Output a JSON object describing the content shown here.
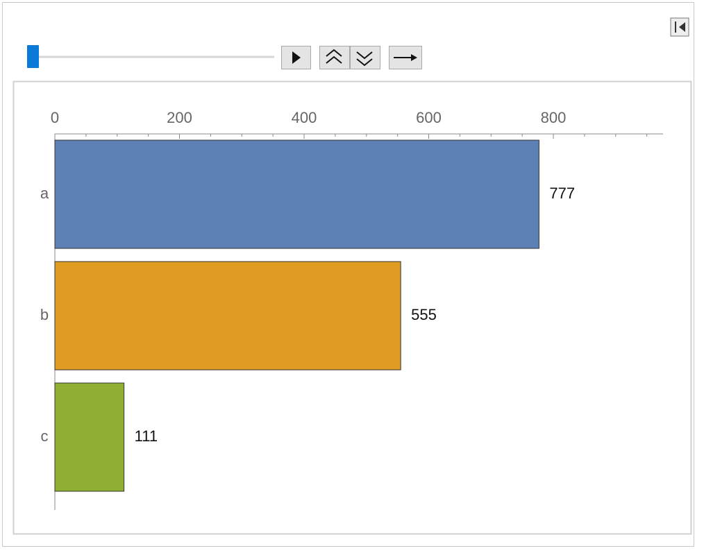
{
  "chart_data": {
    "type": "bar",
    "orientation": "horizontal",
    "categories": [
      "a",
      "b",
      "c"
    ],
    "values": [
      777,
      555,
      111
    ],
    "colors": [
      "#5e81b5",
      "#e19c24",
      "#8fb032"
    ],
    "xlim": [
      0,
      976
    ],
    "xticks": [
      0,
      200,
      400,
      600,
      800
    ],
    "minor_xticks": [
      50,
      100,
      150,
      250,
      300,
      350,
      450,
      500,
      550,
      650,
      700,
      750,
      850,
      900,
      950
    ]
  }
}
